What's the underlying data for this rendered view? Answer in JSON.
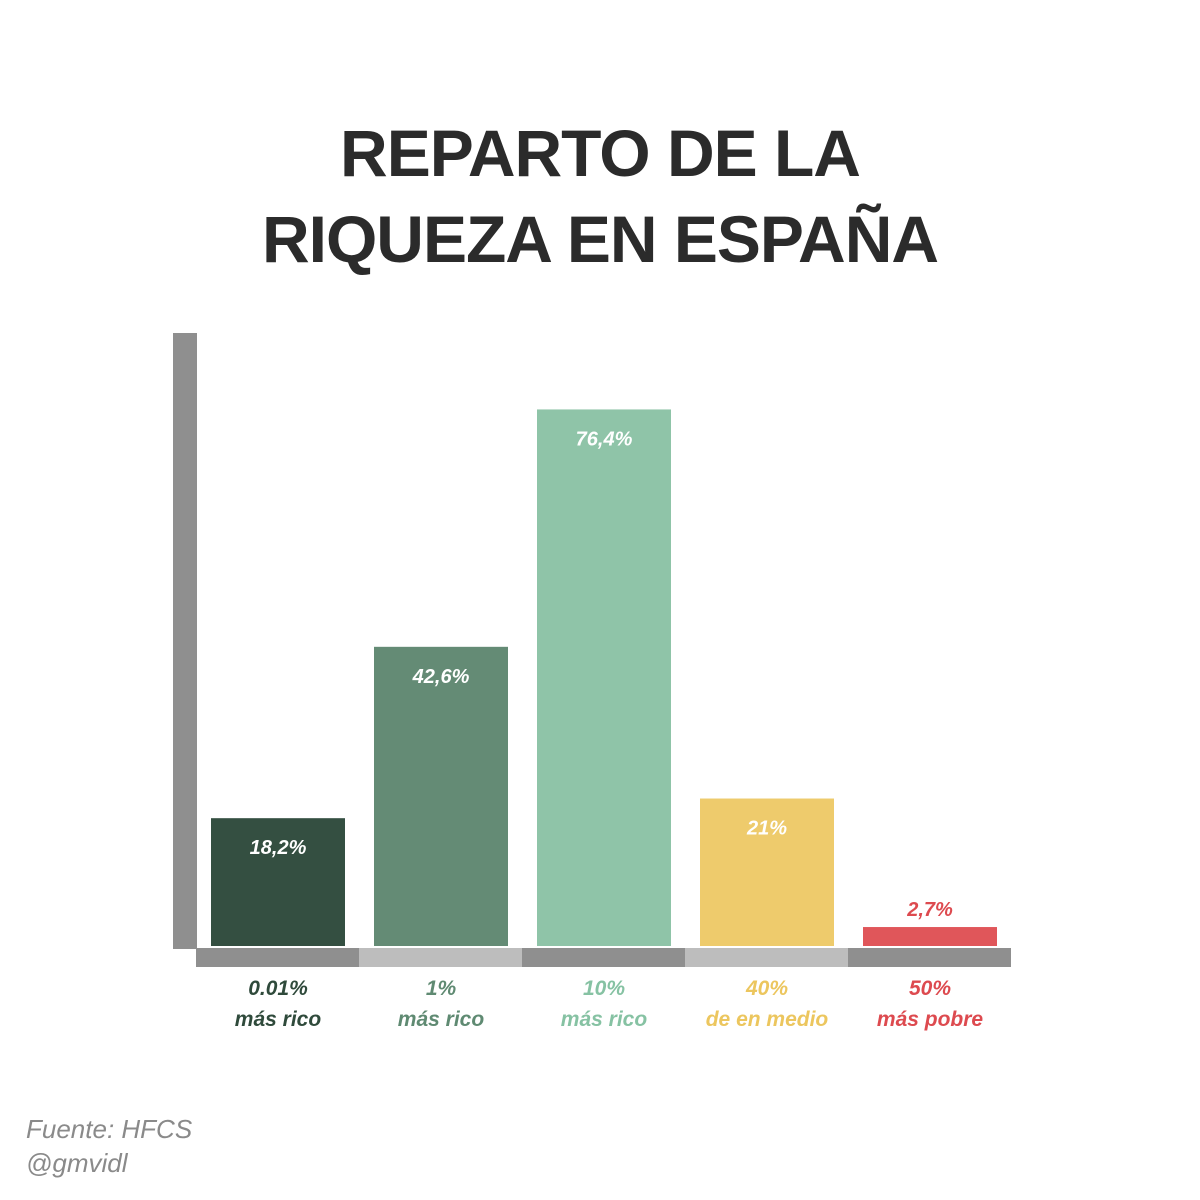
{
  "title": {
    "line1": "REPARTO DE LA",
    "line2": "RIQUEZA EN ESPAÑA"
  },
  "chart_data": {
    "type": "bar",
    "title": "REPARTO DE LA RIQUEZA EN ESPAÑA",
    "categories": [
      [
        "0.01%",
        "más rico"
      ],
      [
        "1%",
        "más rico"
      ],
      [
        "10%",
        "más rico"
      ],
      [
        "40%",
        "de en medio"
      ],
      [
        "50%",
        "más pobre"
      ]
    ],
    "values": [
      18.2,
      42.6,
      76.4,
      21,
      2.7
    ],
    "value_labels": [
      "18,2%",
      "42,6%",
      "76,4%",
      "21%",
      "2,7%"
    ],
    "colors": [
      "#344f41",
      "#648b75",
      "#8fc4a8",
      "#eecb6c",
      "#e0565a"
    ],
    "label_colors": [
      "#2f4a3b",
      "#5f8a72",
      "#86c2a3",
      "#ecc65e",
      "#dd4a4f"
    ],
    "ylim": [
      0,
      87
    ],
    "grid": false,
    "legend": "none"
  },
  "source": {
    "line1": "Fuente: HFCS",
    "line2": "@gmvidl"
  }
}
